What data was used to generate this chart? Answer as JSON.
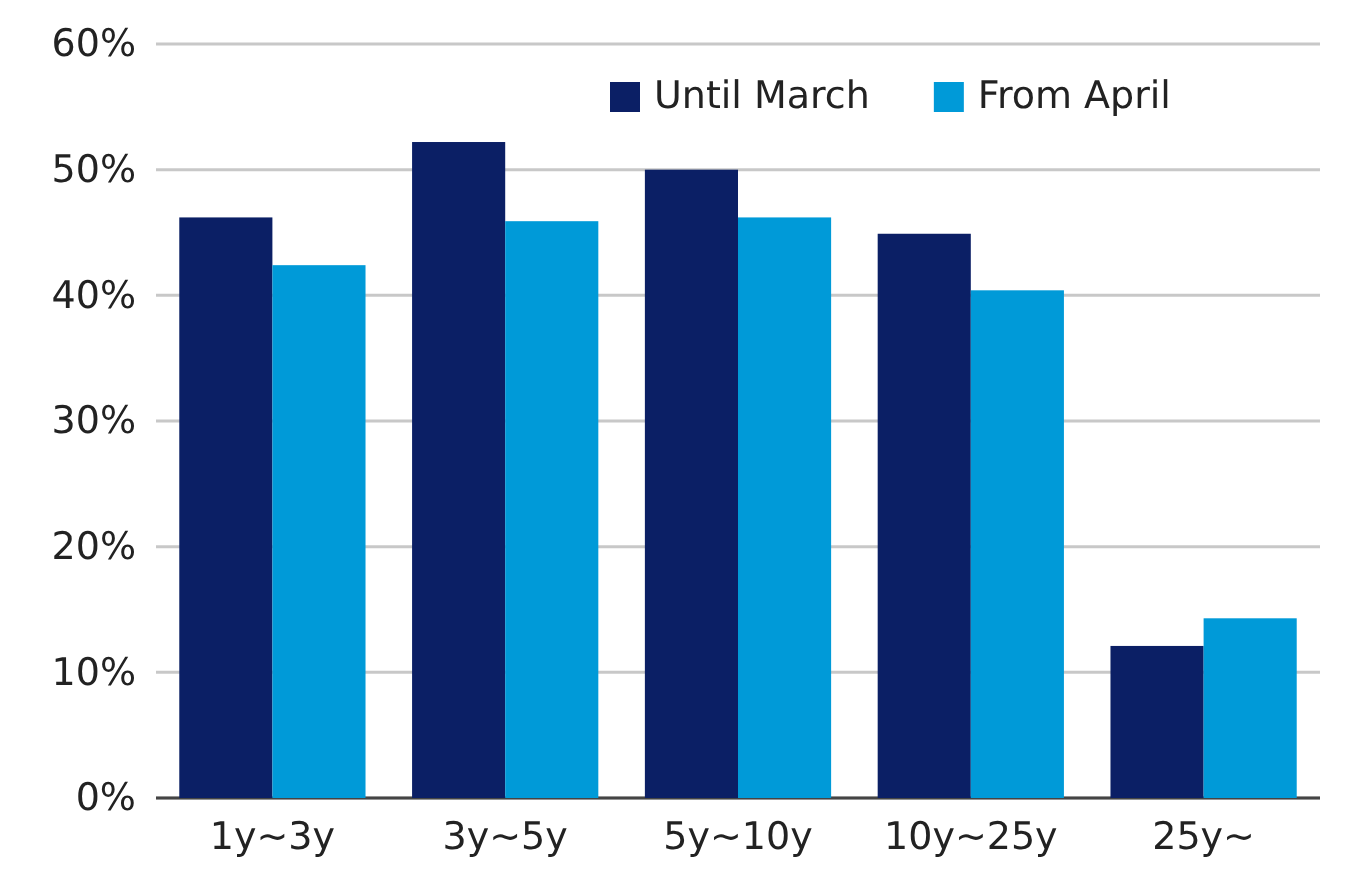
{
  "chart_data": {
    "type": "bar",
    "categories": [
      "1y~3y",
      "3y~5y",
      "5y~10y",
      "10y~25y",
      "25y~"
    ],
    "series": [
      {
        "name": "Until March",
        "color": "#0b1f65",
        "values": [
          46.2,
          52.2,
          50,
          44.9,
          12.1
        ]
      },
      {
        "name": "From April",
        "color": "#009ad8",
        "values": [
          42.4,
          45.9,
          46.2,
          40.4,
          14.3
        ]
      }
    ],
    "ylim": [
      0,
      60
    ],
    "yticks": [
      {
        "value": 0,
        "label": "0%"
      },
      {
        "value": 10,
        "label": "10%"
      },
      {
        "value": 20,
        "label": "20%"
      },
      {
        "value": 30,
        "label": "30%"
      },
      {
        "value": 40,
        "label": "40%"
      },
      {
        "value": 50,
        "label": "50%"
      },
      {
        "value": 60,
        "label": "60%"
      }
    ],
    "grid": "y",
    "legend": "top right"
  }
}
